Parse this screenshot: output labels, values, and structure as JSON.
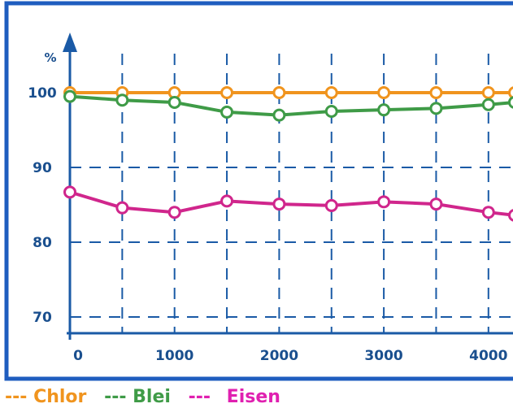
{
  "chart_data": {
    "type": "line",
    "title": "",
    "xlabel": "",
    "ylabel": "%",
    "x": [
      0,
      500,
      1000,
      1500,
      2000,
      2500,
      3000,
      3500,
      4000,
      4250
    ],
    "x_ticks": [
      "0",
      "1000",
      "2000",
      "3000",
      "4000"
    ],
    "y_ticks": [
      "70",
      "80",
      "90",
      "100"
    ],
    "xlim": [
      0,
      4250
    ],
    "ylim": [
      66,
      109
    ],
    "grid": true,
    "legend_position": "bottom",
    "series": [
      {
        "name": "Chlor",
        "color": "#f0941e",
        "marker": "open-circle",
        "values": [
          100.0,
          100.0,
          100.0,
          100.0,
          100.0,
          100.0,
          100.0,
          100.0,
          100.0,
          100.0
        ]
      },
      {
        "name": "Blei",
        "color": "#3f9b47",
        "marker": "open-circle",
        "values": [
          99.5,
          99.0,
          98.7,
          97.4,
          97.0,
          97.5,
          97.7,
          97.9,
          98.4,
          98.7
        ]
      },
      {
        "name": "Eisen",
        "color": "#d0268c",
        "marker": "open-circle",
        "values": [
          86.7,
          84.6,
          84.0,
          85.5,
          85.1,
          84.9,
          85.4,
          85.1,
          84.0,
          83.6
        ]
      }
    ],
    "colors": {
      "frame": "#1f5dbf",
      "axis": "#1a5aa6",
      "grid": "#1a5aa6",
      "tick_text": "#1a4f8e"
    }
  },
  "legend": {
    "items": [
      {
        "dash": "---",
        "label": "Chlor",
        "color": "#f0941e"
      },
      {
        "dash": "---",
        "label": "Blei",
        "color": "#3f9b47"
      },
      {
        "dash": "---",
        "label": "Eisen",
        "color": "#e020b0"
      }
    ]
  }
}
